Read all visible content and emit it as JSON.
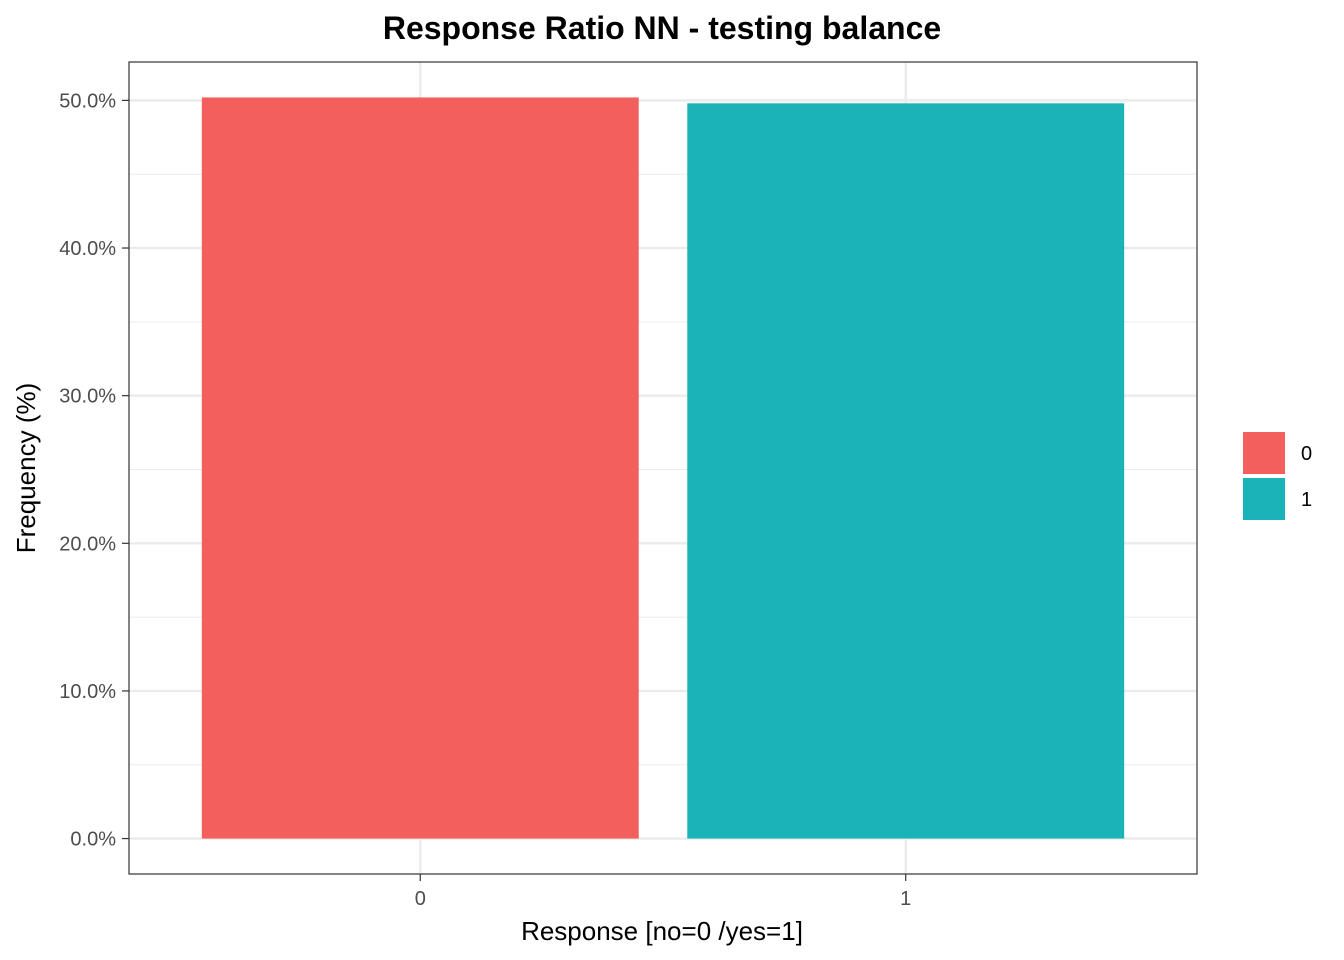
{
  "chart_data": {
    "type": "bar",
    "title": "Response Ratio NN - testing balance",
    "xlabel": "Response [no=0 /yes=1]",
    "ylabel": "Frequency (%)",
    "categories": [
      "0",
      "1"
    ],
    "values": [
      50.2,
      49.8
    ],
    "unit": "%",
    "ylim": [
      -2.4,
      52.6
    ],
    "yticks": [
      0,
      10,
      20,
      30,
      40,
      50
    ],
    "ytick_labels": [
      "0.0%",
      "10.0%",
      "20.0%",
      "30.0%",
      "40.0%",
      "50.0%"
    ],
    "colors": [
      "#F35F5C",
      "#1AB3B8"
    ],
    "grid": true,
    "legend": {
      "placement": "right",
      "entries": [
        "0",
        "1"
      ]
    }
  }
}
